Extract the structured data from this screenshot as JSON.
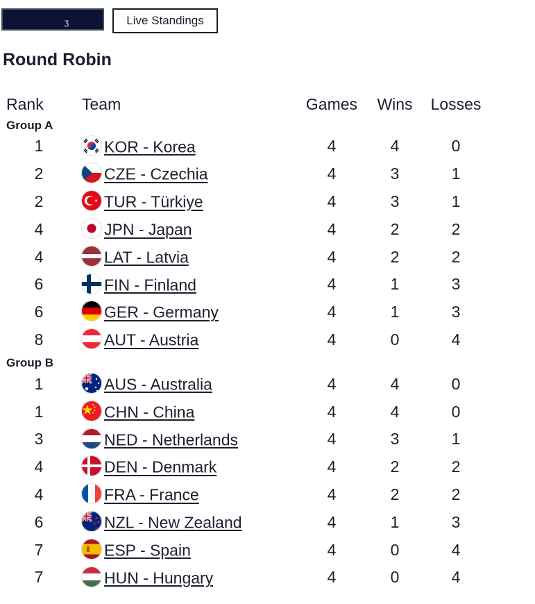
{
  "toolbar": {
    "dark_button_mark": "ʒ",
    "live_standings_label": "Live Standings"
  },
  "title": "Round Robin",
  "columns": {
    "rank": "Rank",
    "team": "Team",
    "games": "Games",
    "wins": "Wins",
    "losses": "Losses"
  },
  "groups": [
    {
      "name": "Group A",
      "teams": [
        {
          "rank": "1",
          "team": "KOR - Korea",
          "flag": "kor",
          "games": "4",
          "wins": "4",
          "losses": "0"
        },
        {
          "rank": "2",
          "team": "CZE - Czechia",
          "flag": "cze",
          "games": "4",
          "wins": "3",
          "losses": "1"
        },
        {
          "rank": "2",
          "team": "TUR - Türkiye",
          "flag": "tur",
          "games": "4",
          "wins": "3",
          "losses": "1"
        },
        {
          "rank": "4",
          "team": "JPN - Japan",
          "flag": "jpn",
          "games": "4",
          "wins": "2",
          "losses": "2"
        },
        {
          "rank": "4",
          "team": "LAT - Latvia",
          "flag": "lat",
          "games": "4",
          "wins": "2",
          "losses": "2"
        },
        {
          "rank": "6",
          "team": "FIN - Finland",
          "flag": "fin",
          "games": "4",
          "wins": "1",
          "losses": "3"
        },
        {
          "rank": "6",
          "team": "GER - Germany",
          "flag": "ger",
          "games": "4",
          "wins": "1",
          "losses": "3"
        },
        {
          "rank": "8",
          "team": "AUT - Austria",
          "flag": "aut",
          "games": "4",
          "wins": "0",
          "losses": "4"
        }
      ]
    },
    {
      "name": "Group B",
      "teams": [
        {
          "rank": "1",
          "team": "AUS - Australia",
          "flag": "aus",
          "games": "4",
          "wins": "4",
          "losses": "0"
        },
        {
          "rank": "1",
          "team": "CHN - China",
          "flag": "chn",
          "games": "4",
          "wins": "4",
          "losses": "0"
        },
        {
          "rank": "3",
          "team": "NED - Netherlands",
          "flag": "ned",
          "games": "4",
          "wins": "3",
          "losses": "1"
        },
        {
          "rank": "4",
          "team": "DEN - Denmark",
          "flag": "den",
          "games": "4",
          "wins": "2",
          "losses": "2"
        },
        {
          "rank": "4",
          "team": "FRA - France",
          "flag": "fra",
          "games": "4",
          "wins": "2",
          "losses": "2"
        },
        {
          "rank": "6",
          "team": "NZL - New Zealand",
          "flag": "nzl",
          "games": "4",
          "wins": "1",
          "losses": "3"
        },
        {
          "rank": "7",
          "team": "ESP - Spain",
          "flag": "esp",
          "games": "4",
          "wins": "0",
          "losses": "4"
        },
        {
          "rank": "7",
          "team": "HUN - Hungary",
          "flag": "hun",
          "games": "4",
          "wins": "0",
          "losses": "4"
        }
      ]
    }
  ]
}
